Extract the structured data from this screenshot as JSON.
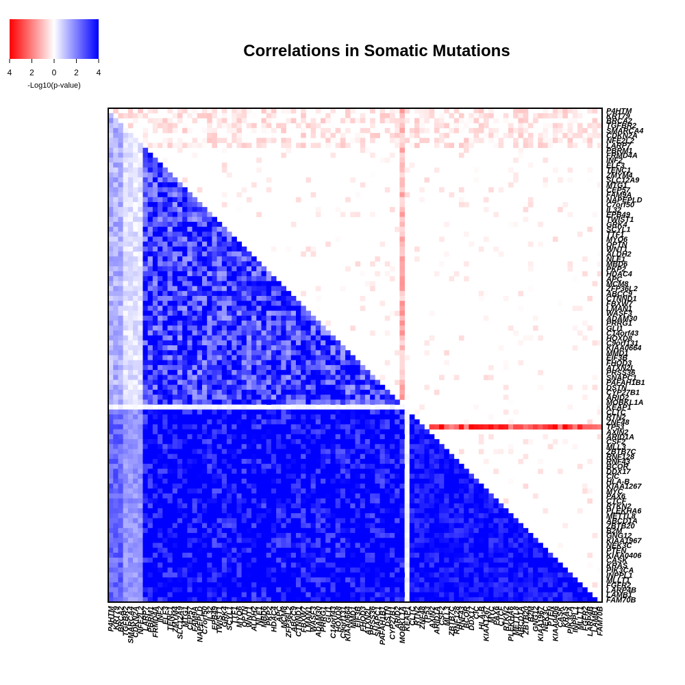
{
  "chart_data": {
    "type": "heatmap",
    "title": "Correlations in Somatic Mutations",
    "legend": {
      "label": "-Log10(p-value)",
      "tick_labels": [
        "4",
        "2",
        "0",
        "2",
        "4"
      ],
      "colors": {
        "negative": "#ff0000",
        "zero": "#ffffff",
        "positive": "#0000ff"
      },
      "range": [
        -4,
        4
      ]
    },
    "genes": [
      "P4HTM",
      "KRT79",
      "BRCA2",
      "TGFBR2",
      "SMARCA4",
      "CDKN2A",
      "NFE2L2",
      "LARP7",
      "PBRM1",
      "FRMD4A",
      "INF2",
      "ELF3",
      "TENC1",
      "ZMYM4",
      "SLC12A9",
      "MTG1",
      "CEP57",
      "FAM9A",
      "NAPEPLD",
      "C7orf50",
      "IL32",
      "EPB49",
      "TWIST1",
      "GRK4",
      "SCYL1",
      "TTF1",
      "MYO6",
      "OPTN",
      "WNT1",
      "ALDH2",
      "NLE1",
      "MBD6",
      "PKP2",
      "HDAC4",
      "APC",
      "MCM8",
      "ZFP36L2",
      "ABCC9",
      "CTNND1",
      "FBXW7",
      "LMAN1",
      "WASF3",
      "ADAM30",
      "PRRG1",
      "GLI1",
      "C14orf43",
      "HOXD8",
      "C9orf131",
      "KIAA0664",
      "MMD1",
      "EIF3B",
      "FHOD3",
      "ATXN2L",
      "PRSS36",
      "SNAPC1",
      "PAFAH1B1",
      "DSTN",
      "CYP27B1",
      "ARID2",
      "MOBKL1A",
      "KEAP1",
      "CLTC",
      "RTN2",
      "ZNF48",
      "TP53",
      "AXIN2",
      "ARID1A",
      "CSF2",
      "MLL3",
      "ZBTB7C",
      "RNF128",
      "RNF43",
      "BCOR",
      "DDX17",
      "CIC",
      "HLA-B",
      "KIAA1267",
      "MYC",
      "PAX6",
      "CTCF",
      "RTKN2",
      "PLEKHA6",
      "METTL8",
      "ABCD1A",
      "ZBTB20",
      "B2M",
      "GNG12",
      "KIAA1967",
      "NEK3C",
      "PTEN",
      "KIAA0406",
      "CASK",
      "KRAS",
      "PIK3CA",
      "INPPL1",
      "MLLT1",
      "FGFR2",
      "LARP4B",
      "LAMB1",
      "FAM70B"
    ],
    "neg_row_gene": "TP53",
    "neg_col_gene": "MOBKL1A",
    "separator_gene": "KEAP1",
    "value_seed": 7,
    "x_axis": "genes",
    "y_axis": "genes"
  }
}
